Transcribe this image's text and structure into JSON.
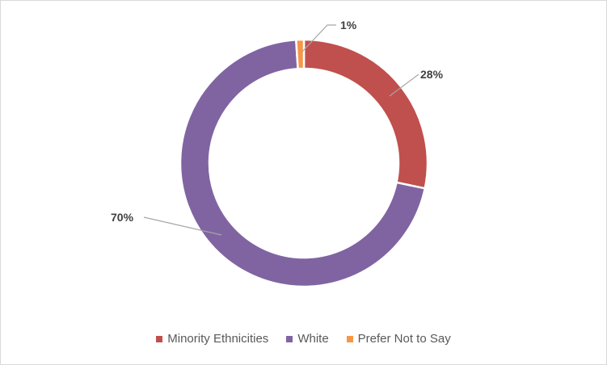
{
  "chart_data": {
    "type": "pie",
    "variant": "donut",
    "title": "",
    "categories": [
      "Minority Ethnicities",
      "White",
      "Prefer Not to Say"
    ],
    "values": [
      28,
      70,
      1
    ],
    "data_labels": [
      "28%",
      "70%",
      "1%"
    ],
    "colors": [
      "#C0504D",
      "#8064A2",
      "#F79646"
    ],
    "start_angle_deg": 0,
    "direction": "clockwise",
    "legend_position": "bottom"
  }
}
